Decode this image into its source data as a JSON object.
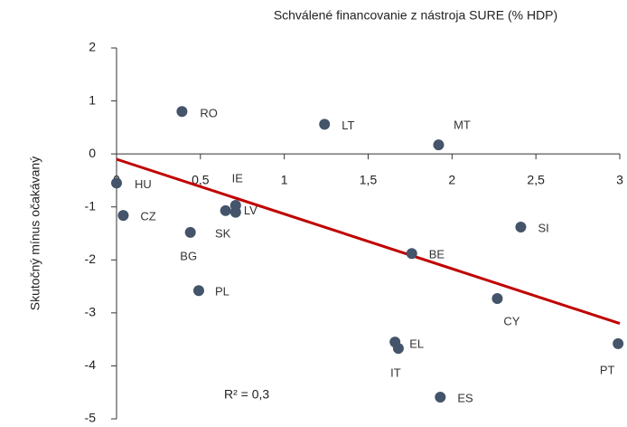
{
  "chart_data": {
    "type": "scatter",
    "title": "Schválené financovanie z nástroja SURE (% HDP)",
    "y_label": "Skutočný mínus očakávaný",
    "annotation": "R² = 0,3",
    "color": "#44546a",
    "labels": [
      "HU",
      "CZ",
      "RO",
      "BG",
      "PL",
      "SK",
      "IE",
      "LV",
      "LT",
      "MT",
      "BE",
      "SI",
      "CY",
      "EL",
      "IT",
      "ES",
      "PT"
    ],
    "x": [
      0.0,
      0.04,
      0.39,
      0.44,
      0.49,
      0.65,
      0.71,
      0.71,
      1.24,
      1.92,
      1.76,
      2.41,
      2.27,
      1.66,
      1.68,
      1.93,
      2.99
    ],
    "y": [
      -0.55,
      -1.16,
      0.8,
      -1.48,
      -2.58,
      -1.07,
      -0.97,
      -1.1,
      0.56,
      0.17,
      -1.88,
      -1.38,
      -2.73,
      -3.55,
      -3.67,
      -4.59,
      -3.58
    ],
    "trendline": {
      "color": "#c00000",
      "x": [
        0,
        3
      ],
      "y": [
        -0.1,
        -3.2
      ]
    },
    "xlim": [
      0,
      3
    ],
    "xticks": [
      0,
      {
        "value": 0.5,
        "label": "0,5"
      },
      1,
      {
        "value": 1.5,
        "label": "1,5"
      },
      2,
      {
        "value": 2.5,
        "label": "2,5"
      },
      3
    ],
    "ylim": [
      -5,
      2
    ],
    "yticks": [
      -5,
      -4,
      -3,
      -2,
      -1,
      0,
      1,
      2
    ]
  }
}
